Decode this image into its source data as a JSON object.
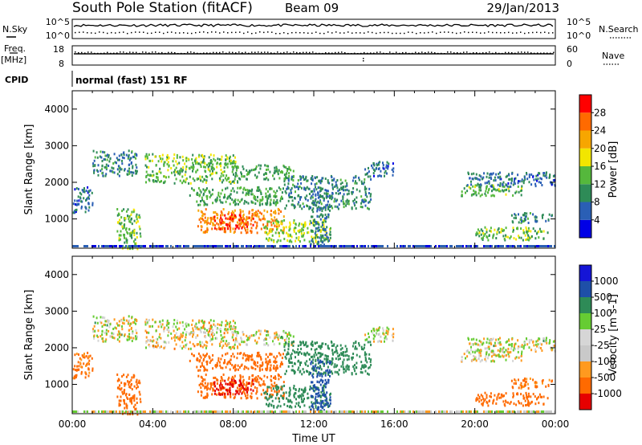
{
  "header": {
    "title": "South Pole Station (fitACF)",
    "beam": "Beam 09",
    "date": "29/Jan/2013"
  },
  "noise_panel": {
    "left_label": "N.Sky",
    "left_ticks": [
      "10^5",
      "10^0"
    ],
    "right_label": "N.Search",
    "right_ticks": [
      "10^5",
      "10^0"
    ]
  },
  "freq_panel": {
    "left_label_1": "Freq.",
    "left_label_2": "[MHz]",
    "left_ticks": [
      "18",
      "8"
    ],
    "right_label": "Nave",
    "right_ticks": [
      "60",
      "0"
    ]
  },
  "cpid_panel": {
    "label": "CPID",
    "text": "normal (fast) 151 RF"
  },
  "colors": {
    "power": [
      "#0000e6",
      "#2a5fb5",
      "#2e8b57",
      "#55b83c",
      "#f2e600",
      "#f7a600",
      "#ff6a00",
      "#ff0000"
    ],
    "velocity": [
      "#e60000",
      "#ff6a00",
      "#ff9a1f",
      "#c9c9c9",
      "#d6d6d6",
      "#66cc33",
      "#2e8b57",
      "#1e4fa8",
      "#1515d6"
    ]
  },
  "chart_data": [
    {
      "type": "heatmap",
      "name": "power",
      "ylabel": "Slant Range [km]",
      "yticks": [
        "1000",
        "2000",
        "3000",
        "4000"
      ],
      "ylim": [
        200,
        4500
      ],
      "xlim": [
        0,
        24
      ],
      "colorbar_label": "Power [dB]",
      "colorbar_ticks": [
        "4",
        "8",
        "12",
        "16",
        "20",
        "24",
        "28"
      ],
      "colorbar_range": [
        0,
        32
      ],
      "regions": [
        {
          "t0": 3.6,
          "t1": 8.2,
          "r0": 2000,
          "r1": 2800,
          "v": 14
        },
        {
          "t0": 8.0,
          "t1": 11.0,
          "r0": 2100,
          "r1": 2500,
          "v": 12
        },
        {
          "t0": 1.0,
          "t1": 3.2,
          "r0": 2200,
          "r1": 2900,
          "v": 9
        },
        {
          "t0": 5.8,
          "t1": 10.5,
          "r0": 1400,
          "r1": 1900,
          "v": 12
        },
        {
          "t0": 6.2,
          "t1": 10.5,
          "r0": 650,
          "r1": 1300,
          "v": 24
        },
        {
          "t0": 7.0,
          "t1": 9.0,
          "r0": 750,
          "r1": 1150,
          "v": 28
        },
        {
          "t0": 9.5,
          "t1": 12.8,
          "r0": 400,
          "r1": 1000,
          "v": 16
        },
        {
          "t0": 10.5,
          "t1": 14.8,
          "r0": 1300,
          "r1": 2200,
          "v": 9
        },
        {
          "t0": 11.8,
          "t1": 12.8,
          "r0": 300,
          "r1": 1700,
          "v": 8
        },
        {
          "t0": 19.3,
          "t1": 22.3,
          "r0": 1650,
          "r1": 1950,
          "v": 13
        },
        {
          "t0": 19.5,
          "t1": 24.0,
          "r0": 1900,
          "r1": 2300,
          "v": 7
        },
        {
          "t0": 20.0,
          "t1": 23.6,
          "r0": 450,
          "r1": 800,
          "v": 14
        },
        {
          "t0": 21.8,
          "t1": 23.8,
          "r0": 900,
          "r1": 1200,
          "v": 9
        },
        {
          "t0": 2.2,
          "t1": 3.4,
          "r0": 200,
          "r1": 1300,
          "v": 14
        },
        {
          "t0": 0.0,
          "t1": 1.0,
          "r0": 1200,
          "r1": 1900,
          "v": 7
        },
        {
          "t0": 14.5,
          "t1": 16.0,
          "r0": 2200,
          "r1": 2600,
          "v": 7
        }
      ]
    },
    {
      "type": "heatmap",
      "name": "velocity",
      "ylabel": "Slant Range [km]",
      "yticks": [
        "1000",
        "2000",
        "3000",
        "4000"
      ],
      "ylim": [
        200,
        4500
      ],
      "xlabel": "Time UT",
      "xticks": [
        "00:00",
        "04:00",
        "08:00",
        "12:00",
        "16:00",
        "20:00",
        "00:00"
      ],
      "xlim": [
        0,
        24
      ],
      "colorbar_label": "Velocity [m s-1]",
      "colorbar_ticks": [
        "1000",
        "500",
        "100",
        "25",
        "-25",
        "-100",
        "-500",
        "-1000"
      ],
      "regions": [
        {
          "t0": 3.6,
          "t1": 8.2,
          "r0": 2000,
          "r1": 2800,
          "v": -10
        },
        {
          "t0": 8.0,
          "t1": 11.0,
          "r0": 2100,
          "r1": 2500,
          "v": 10
        },
        {
          "t0": 1.0,
          "t1": 3.2,
          "r0": 2200,
          "r1": 2900,
          "v": 5
        },
        {
          "t0": 5.8,
          "t1": 10.5,
          "r0": 1400,
          "r1": 1900,
          "v": -200
        },
        {
          "t0": 6.2,
          "t1": 10.5,
          "r0": 650,
          "r1": 1300,
          "v": -300
        },
        {
          "t0": 7.0,
          "t1": 9.0,
          "r0": 750,
          "r1": 1150,
          "v": -700
        },
        {
          "t0": 9.5,
          "t1": 12.8,
          "r0": 400,
          "r1": 1000,
          "v": 200
        },
        {
          "t0": 10.5,
          "t1": 14.8,
          "r0": 1300,
          "r1": 2200,
          "v": 400
        },
        {
          "t0": 11.8,
          "t1": 12.8,
          "r0": 300,
          "r1": 1700,
          "v": 600
        },
        {
          "t0": 19.3,
          "t1": 22.3,
          "r0": 1650,
          "r1": 1950,
          "v": -5
        },
        {
          "t0": 19.5,
          "t1": 24.0,
          "r0": 1900,
          "r1": 2300,
          "v": 5
        },
        {
          "t0": 20.0,
          "t1": 23.6,
          "r0": 450,
          "r1": 800,
          "v": -300
        },
        {
          "t0": 21.8,
          "t1": 23.8,
          "r0": 900,
          "r1": 1200,
          "v": -150
        },
        {
          "t0": 2.2,
          "t1": 3.4,
          "r0": 200,
          "r1": 1300,
          "v": -250
        },
        {
          "t0": 0.0,
          "t1": 1.0,
          "r0": 1200,
          "r1": 1900,
          "v": -150
        },
        {
          "t0": 14.5,
          "t1": 16.0,
          "r0": 2200,
          "r1": 2600,
          "v": 10
        }
      ]
    }
  ]
}
